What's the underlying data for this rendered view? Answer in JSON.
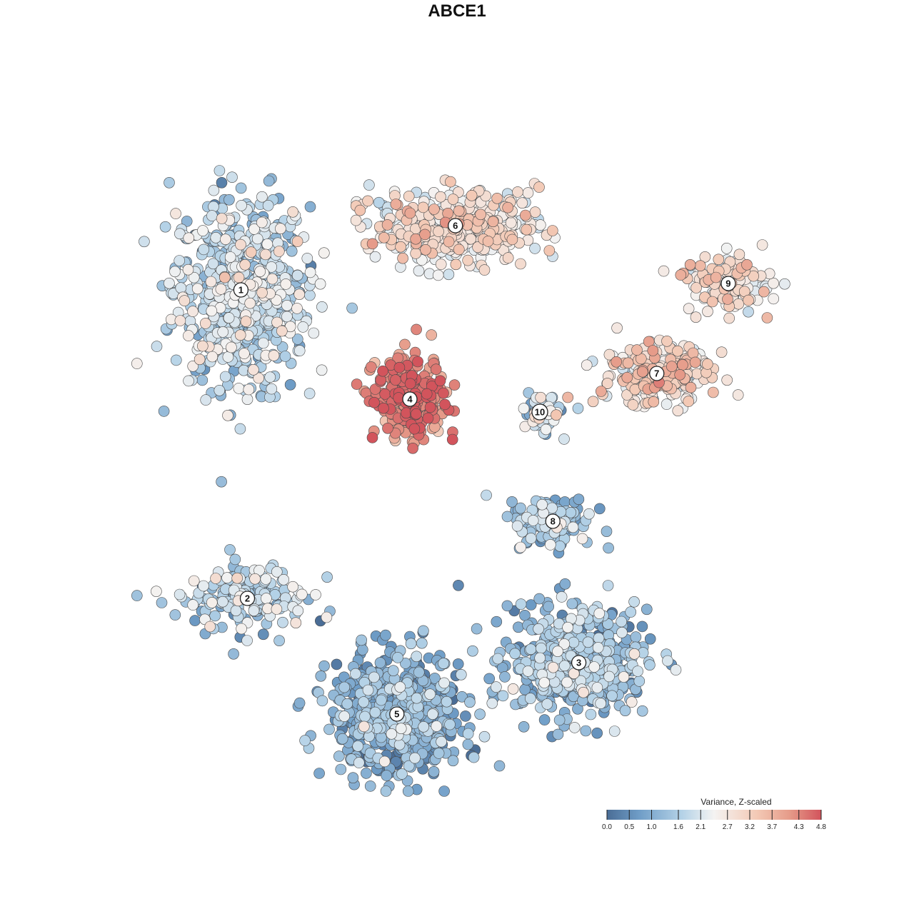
{
  "chart_data": {
    "type": "scatter",
    "title": "ABCE1",
    "xlabel": "",
    "ylabel": "",
    "grid": false,
    "legend": {
      "title": "Variance, Z-scaled",
      "placement": "bottom-right",
      "ticks": [
        0.0,
        0.5,
        1.0,
        1.6,
        2.1,
        2.7,
        3.2,
        3.7,
        4.3,
        4.8
      ],
      "tick_labels": [
        "0.0",
        "0.5",
        "1.0",
        "1.6",
        "2.1",
        "2.7",
        "3.2",
        "3.7",
        "4.3",
        "4.8"
      ],
      "range": [
        0.0,
        4.8
      ]
    },
    "colors": {
      "low": "#4a6d96",
      "mid_low": "#7aa9d1",
      "mid": "#c3dcec",
      "center": "#f4f3f2",
      "mid_high": "#f1c5b1",
      "high": "#d2545c"
    },
    "clusters": [
      {
        "label": "1",
        "center": [
          0.14,
          0.76
        ],
        "spread": [
          0.095,
          0.135
        ],
        "mean_value": 1.7,
        "n_points": 650
      },
      {
        "label": "2",
        "center": [
          0.15,
          0.28
        ],
        "spread": [
          0.085,
          0.05
        ],
        "mean_value": 1.6,
        "n_points": 180
      },
      {
        "label": "3",
        "center": [
          0.66,
          0.18
        ],
        "spread": [
          0.095,
          0.075
        ],
        "mean_value": 1.2,
        "n_points": 520
      },
      {
        "label": "4",
        "center": [
          0.4,
          0.59
        ],
        "spread": [
          0.05,
          0.055
        ],
        "mean_value": 4.2,
        "n_points": 260
      },
      {
        "label": "5",
        "center": [
          0.38,
          0.1
        ],
        "spread": [
          0.09,
          0.085
        ],
        "mean_value": 0.9,
        "n_points": 620
      },
      {
        "label": "6",
        "center": [
          0.47,
          0.86
        ],
        "spread": [
          0.115,
          0.05
        ],
        "mean_value": 2.6,
        "n_points": 420
      },
      {
        "label": "7",
        "center": [
          0.78,
          0.63
        ],
        "spread": [
          0.075,
          0.045
        ],
        "mean_value": 2.8,
        "n_points": 230
      },
      {
        "label": "8",
        "center": [
          0.62,
          0.4
        ],
        "spread": [
          0.055,
          0.035
        ],
        "mean_value": 1.3,
        "n_points": 140
      },
      {
        "label": "9",
        "center": [
          0.89,
          0.77
        ],
        "spread": [
          0.06,
          0.04
        ],
        "mean_value": 2.7,
        "n_points": 120
      },
      {
        "label": "10",
        "center": [
          0.6,
          0.57
        ],
        "spread": [
          0.03,
          0.03
        ],
        "mean_value": 1.8,
        "n_points": 60
      }
    ]
  }
}
